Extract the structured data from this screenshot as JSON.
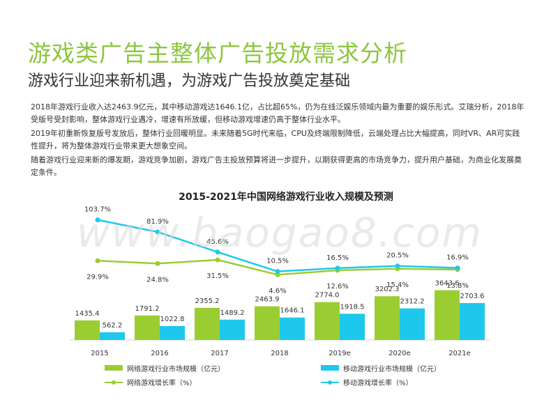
{
  "header": {
    "title": "游戏类广告主整体广告投放需求分析",
    "subtitle": "游戏行业迎来新机遇，为游戏广告投放奠定基础"
  },
  "body": {
    "paragraph_1": "2018年游戏行业收入达2463.9亿元，其中移动游戏达1646.1亿，占比超65%，仍为在线泛娱乐领域内最为重要的娱乐形式。艾瑞分析，2018年受版号受封影响，整体游戏行业遇冷，增速有所放缓，但移动游戏增速仍高于整体行业水平。",
    "paragraph_2": "2019年初重新恢复版号发放后，整体行业回暖明显。未来随着5G时代来临，CPU及终端限制降低，云端处理占比大幅提高，同时VR、AR可实践性提升，将为整体游戏行业带来更大想象空间。",
    "paragraph_3": "随着游戏行业迎来新的爆发期，游戏竞争加剧，游戏广告主投放预算将进一步提升，以期获得更高的市场竞争力，提升用户基础，为商业化发展奠定条件。"
  },
  "watermark": "www.baogao8.com",
  "colors": {
    "title": "#8dc63f",
    "online": "#9acd32",
    "mobile": "#1ec8ec"
  },
  "chart_data": {
    "type": "bar",
    "title": "2015-2021年中国网络游戏行业收入规模及预测",
    "categories": [
      "2015",
      "2016",
      "2017",
      "2018",
      "2019e",
      "2020e",
      "2021e"
    ],
    "series": [
      {
        "name": "网络游戏行业市场规模（亿元）",
        "kind": "bar",
        "color": "#9acd32",
        "values": [
          1435.4,
          1791.2,
          2355.2,
          2463.9,
          2774.0,
          3202.3,
          3643.6
        ],
        "labels": [
          "1435.4",
          "1791.2",
          "2355.2",
          "2463.9",
          "2774.0",
          "3202.3",
          "3643.6"
        ]
      },
      {
        "name": "移动游戏行业市场规模（亿元）",
        "kind": "bar",
        "color": "#1ec8ec",
        "values": [
          562.2,
          1022.8,
          1489.2,
          1646.1,
          1918.5,
          2312.2,
          2703.6
        ],
        "labels": [
          "562.2",
          "1022.8",
          "1489.2",
          "1646.1",
          "1918.5",
          "2312.2",
          "2703.6"
        ]
      },
      {
        "name": "网络游戏增长率（%）",
        "kind": "line",
        "color": "#9acd32",
        "values": [
          29.9,
          24.8,
          31.5,
          4.6,
          12.6,
          15.4,
          13.8
        ],
        "labels": [
          "29.9%",
          "24.8%",
          "31.5%",
          "4.6%",
          "12.6%",
          "15.4%",
          "13.8%"
        ]
      },
      {
        "name": "移动游戏增长率（%）",
        "kind": "line",
        "color": "#1ec8ec",
        "values": [
          103.7,
          81.9,
          45.6,
          10.5,
          16.5,
          20.5,
          16.9
        ],
        "labels": [
          "103.7%",
          "81.9%",
          "45.6%",
          "10.5%",
          "16.5%",
          "20.5%",
          "16.9%"
        ]
      }
    ],
    "legend_position": "bottom",
    "grid": false
  }
}
